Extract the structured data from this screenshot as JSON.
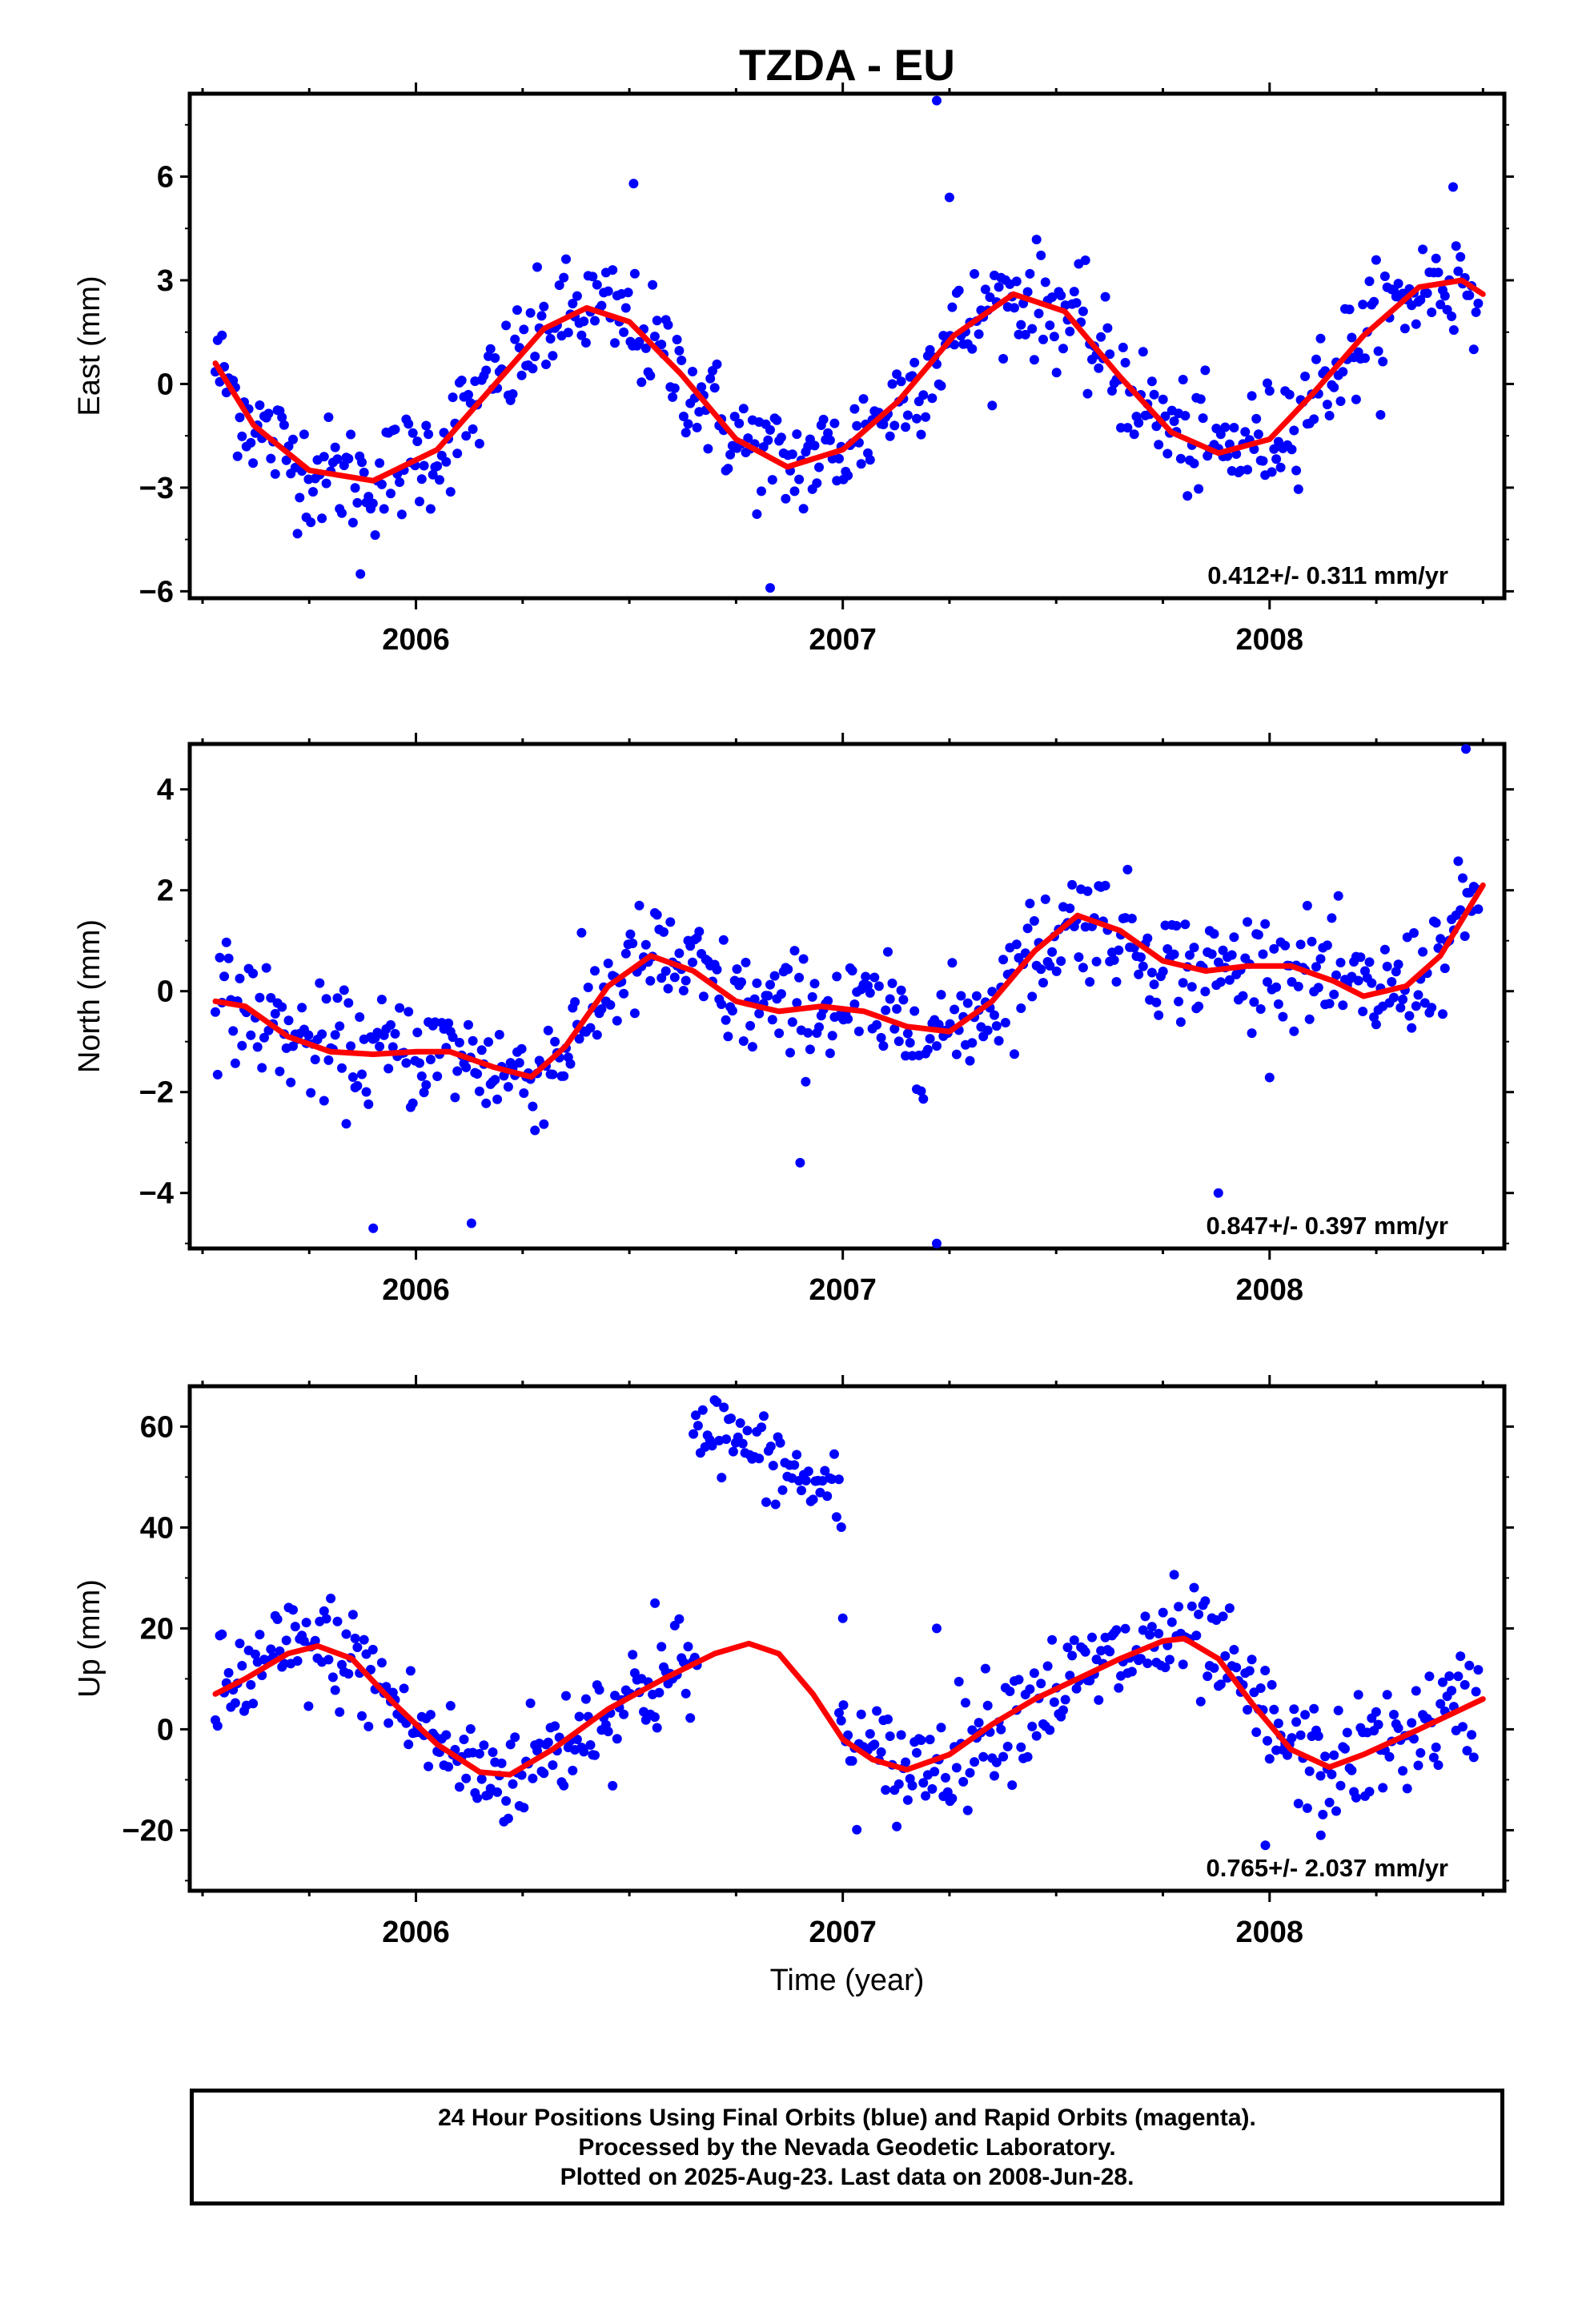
{
  "title": "TZDA - EU",
  "xlabel": "Time (year)",
  "footer": [
    "24 Hour Positions Using Final Orbits (blue) and Rapid Orbits (magenta).",
    "Processed by the Nevada Geodetic Laboratory.",
    "Plotted on 2025-Aug-23. Last data on 2008-Jun-28."
  ],
  "colors": {
    "points": "#0000ff",
    "fit": "#ff0000",
    "frame": "#000000"
  },
  "chart_data": [
    {
      "type": "scatter",
      "component": "east",
      "ylabel": "East (mm)",
      "ylim": [
        -6.2,
        8.4
      ],
      "xlim": [
        2005.47,
        2008.55
      ],
      "yticks": [
        -6,
        -3,
        0,
        3,
        6
      ],
      "xticks": [
        2006,
        2007,
        2008
      ],
      "rate_label": "0.412+/- 0.311 mm/yr",
      "fit_points": [
        [
          2005.53,
          0.6
        ],
        [
          2005.62,
          -1.2
        ],
        [
          2005.75,
          -2.5
        ],
        [
          2005.9,
          -2.8
        ],
        [
          2006.05,
          -1.9
        ],
        [
          2006.2,
          0.2
        ],
        [
          2006.3,
          1.6
        ],
        [
          2006.4,
          2.2
        ],
        [
          2006.5,
          1.8
        ],
        [
          2006.62,
          0.3
        ],
        [
          2006.75,
          -1.6
        ],
        [
          2006.87,
          -2.4
        ],
        [
          2007.0,
          -1.9
        ],
        [
          2007.13,
          -0.5
        ],
        [
          2007.26,
          1.4
        ],
        [
          2007.4,
          2.6
        ],
        [
          2007.52,
          2.1
        ],
        [
          2007.65,
          0.2
        ],
        [
          2007.77,
          -1.4
        ],
        [
          2007.88,
          -2.0
        ],
        [
          2008.0,
          -1.6
        ],
        [
          2008.1,
          -0.3
        ],
        [
          2008.22,
          1.4
        ],
        [
          2008.35,
          2.8
        ],
        [
          2008.45,
          3.0
        ],
        [
          2008.5,
          2.6
        ]
      ],
      "outliers": [
        [
          2007.22,
          8.2
        ],
        [
          2007.25,
          5.4
        ],
        [
          2006.51,
          5.8
        ],
        [
          2006.83,
          -5.9
        ],
        [
          2005.87,
          -5.5
        ],
        [
          2008.43,
          5.7
        ]
      ]
    },
    {
      "type": "scatter",
      "component": "north",
      "ylabel": "North (mm)",
      "ylim": [
        -5.1,
        4.9
      ],
      "xlim": [
        2005.47,
        2008.55
      ],
      "yticks": [
        -4,
        -2,
        0,
        2,
        4
      ],
      "xticks": [
        2006,
        2007,
        2008
      ],
      "rate_label": "0.847+/- 0.397 mm/yr",
      "fit_points": [
        [
          2005.53,
          -0.2
        ],
        [
          2005.6,
          -0.3
        ],
        [
          2005.7,
          -0.9
        ],
        [
          2005.8,
          -1.2
        ],
        [
          2005.9,
          -1.25
        ],
        [
          2006.0,
          -1.2
        ],
        [
          2006.08,
          -1.2
        ],
        [
          2006.18,
          -1.5
        ],
        [
          2006.27,
          -1.7
        ],
        [
          2006.35,
          -1.1
        ],
        [
          2006.45,
          0.1
        ],
        [
          2006.55,
          0.7
        ],
        [
          2006.65,
          0.4
        ],
        [
          2006.75,
          -0.2
        ],
        [
          2006.85,
          -0.4
        ],
        [
          2006.95,
          -0.3
        ],
        [
          2007.05,
          -0.4
        ],
        [
          2007.15,
          -0.7
        ],
        [
          2007.25,
          -0.8
        ],
        [
          2007.35,
          -0.2
        ],
        [
          2007.45,
          0.8
        ],
        [
          2007.55,
          1.5
        ],
        [
          2007.65,
          1.2
        ],
        [
          2007.75,
          0.6
        ],
        [
          2007.85,
          0.4
        ],
        [
          2007.95,
          0.5
        ],
        [
          2008.05,
          0.5
        ],
        [
          2008.15,
          0.2
        ],
        [
          2008.22,
          -0.1
        ],
        [
          2008.32,
          0.1
        ],
        [
          2008.4,
          0.7
        ],
        [
          2008.5,
          2.1
        ]
      ],
      "outliers": [
        [
          2007.22,
          -5.0
        ],
        [
          2008.46,
          4.8
        ],
        [
          2005.9,
          -4.7
        ],
        [
          2006.13,
          -4.6
        ],
        [
          2007.88,
          -4.0
        ],
        [
          2006.9,
          -3.4
        ]
      ]
    },
    {
      "type": "scatter",
      "component": "up",
      "ylabel": "Up (mm)",
      "ylim": [
        -32,
        68
      ],
      "xlim": [
        2005.47,
        2008.55
      ],
      "yticks": [
        -20,
        0,
        20,
        40,
        60
      ],
      "xticks": [
        2006,
        2007,
        2008
      ],
      "rate_label": "0.765+/- 2.037 mm/yr",
      "fit_points": [
        [
          2005.53,
          7
        ],
        [
          2005.6,
          10
        ],
        [
          2005.7,
          15
        ],
        [
          2005.77,
          16.5
        ],
        [
          2005.85,
          14
        ],
        [
          2005.95,
          5
        ],
        [
          2006.05,
          -3
        ],
        [
          2006.15,
          -8.5
        ],
        [
          2006.22,
          -9
        ],
        [
          2006.32,
          -4
        ],
        [
          2006.45,
          4
        ],
        [
          2006.58,
          10
        ],
        [
          2006.7,
          15
        ],
        [
          2006.78,
          17
        ],
        [
          2006.85,
          15
        ],
        [
          2006.93,
          7
        ],
        [
          2007.0,
          -2
        ],
        [
          2007.07,
          -6
        ],
        [
          2007.15,
          -8
        ],
        [
          2007.25,
          -5
        ],
        [
          2007.35,
          1
        ],
        [
          2007.45,
          6
        ],
        [
          2007.55,
          10
        ],
        [
          2007.65,
          14
        ],
        [
          2007.75,
          17.5
        ],
        [
          2007.8,
          18
        ],
        [
          2007.88,
          14
        ],
        [
          2007.96,
          5
        ],
        [
          2008.05,
          -4
        ],
        [
          2008.14,
          -7.5
        ],
        [
          2008.22,
          -5
        ],
        [
          2008.35,
          0
        ],
        [
          2008.45,
          4
        ],
        [
          2008.5,
          6
        ]
      ],
      "outlier_cluster": {
        "x_range": [
          2006.65,
          2007.0
        ],
        "y_start": 62,
        "y_end": 45
      },
      "outliers": [
        [
          2007.0,
          22
        ],
        [
          2007.22,
          20
        ],
        [
          2007.99,
          -23
        ],
        [
          2008.12,
          -21
        ],
        [
          2006.56,
          25
        ]
      ]
    }
  ]
}
